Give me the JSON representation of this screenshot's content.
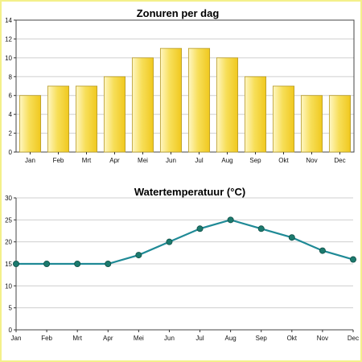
{
  "colors": {
    "bar_fill_light": "#fbf3a8",
    "bar_fill_dark": "#f2cf2a",
    "bar_stroke": "#b59a2a",
    "line": "#1f8a96",
    "marker": "#1c7a6e",
    "grid": "#cfcfcf",
    "frame": "#f4f08a"
  },
  "chart_data": [
    {
      "type": "bar",
      "title": "Zonuren per dag",
      "categories": [
        "Jan",
        "Feb",
        "Mrt",
        "Apr",
        "Mei",
        "Jun",
        "Jul",
        "Aug",
        "Sep",
        "Okt",
        "Nov",
        "Dec"
      ],
      "values": [
        6,
        7,
        7,
        8,
        10,
        11,
        11,
        10,
        8,
        7,
        6,
        6
      ],
      "ylim": [
        0,
        14
      ],
      "yticks": [
        0,
        2,
        4,
        6,
        8,
        10,
        12,
        14
      ],
      "xlabel": "",
      "ylabel": "",
      "grid": true
    },
    {
      "type": "line",
      "title": "Watertemperatuur (°C)",
      "categories": [
        "Jan",
        "Feb",
        "Mrt",
        "Apr",
        "Mei",
        "Jun",
        "Jul",
        "Aug",
        "Sep",
        "Okt",
        "Nov",
        "Dec"
      ],
      "values": [
        15,
        15,
        15,
        15,
        17,
        20,
        23,
        25,
        23,
        21,
        18,
        16
      ],
      "ylim": [
        0,
        30
      ],
      "yticks": [
        0,
        5,
        10,
        15,
        20,
        25,
        30
      ],
      "xlabel": "",
      "ylabel": "",
      "grid": true
    }
  ]
}
